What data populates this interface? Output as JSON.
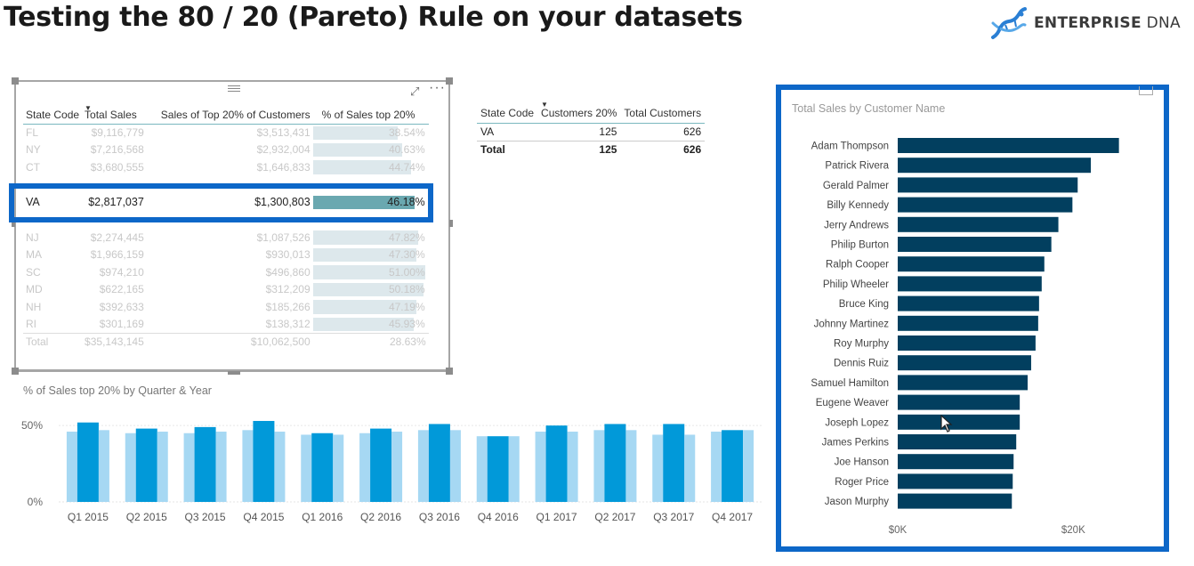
{
  "header": {
    "title": "Testing the 80 / 20 (Pareto) Rule on your datasets",
    "logo_text_bold": "ENTERPRISE",
    "logo_text_light": " DNA"
  },
  "state_table": {
    "columns": [
      "State Code",
      "Total Sales",
      "Sales of Top 20% of Customers",
      "% of Sales top 20%"
    ],
    "rows_top": [
      {
        "state": "FL",
        "total": "$9,116,779",
        "top20": "$3,513,431",
        "pct": "38.54%",
        "pct_value": 38.54
      },
      {
        "state": "NY",
        "total": "$7,216,568",
        "top20": "$2,932,004",
        "pct": "40.63%",
        "pct_value": 40.63
      },
      {
        "state": "CT",
        "total": "$3,680,555",
        "top20": "$1,646,833",
        "pct": "44.74%",
        "pct_value": 44.74
      }
    ],
    "selected_row": {
      "state": "VA",
      "total": "$2,817,037",
      "top20": "$1,300,803",
      "pct": "46.18%",
      "pct_value": 46.18
    },
    "rows_bottom": [
      {
        "state": "NJ",
        "total": "$2,274,445",
        "top20": "$1,087,526",
        "pct": "47.82%",
        "pct_value": 47.82
      },
      {
        "state": "MA",
        "total": "$1,966,159",
        "top20": "$930,013",
        "pct": "47.30%",
        "pct_value": 47.3
      },
      {
        "state": "SC",
        "total": "$974,210",
        "top20": "$496,860",
        "pct": "51.00%",
        "pct_value": 51.0
      },
      {
        "state": "MD",
        "total": "$622,165",
        "top20": "$312,209",
        "pct": "50.18%",
        "pct_value": 50.18
      },
      {
        "state": "NH",
        "total": "$392,633",
        "top20": "$185,266",
        "pct": "47.19%",
        "pct_value": 47.19
      },
      {
        "state": "RI",
        "total": "$301,169",
        "top20": "$138,312",
        "pct": "45.93%",
        "pct_value": 45.93
      }
    ],
    "total": {
      "label": "Total",
      "total": "$35,143,145",
      "top20": "$10,062,500",
      "pct": "28.63%"
    }
  },
  "customer_table": {
    "columns": [
      "State Code",
      "Customers 20%",
      "Total Customers"
    ],
    "row": {
      "state": "VA",
      "customers20": "125",
      "total": "626"
    },
    "total": {
      "label": "Total",
      "customers20": "125",
      "total": "626"
    }
  },
  "chart_data": [
    {
      "type": "bar",
      "title": "% of Sales top 20% by Quarter & Year",
      "categories": [
        "Q1 2015",
        "Q2 2015",
        "Q3 2015",
        "Q4 2015",
        "Q1 2016",
        "Q2 2016",
        "Q3 2016",
        "Q4 2016",
        "Q1 2017",
        "Q2 2017",
        "Q3 2017",
        "Q4 2017"
      ],
      "series": [
        {
          "values": [
            46,
            45,
            45,
            47,
            44,
            45,
            47,
            43,
            46,
            47,
            44,
            46
          ]
        },
        {
          "values": [
            52,
            48,
            49,
            53,
            45,
            48,
            51,
            43,
            50,
            51,
            51,
            47
          ]
        },
        {
          "values": [
            47,
            46,
            46,
            46,
            44,
            46,
            47,
            43,
            46,
            47,
            44,
            47
          ]
        }
      ],
      "yticks": [
        "50%",
        "0%"
      ],
      "ylim": [
        0,
        60
      ],
      "colors": {
        "light": "#a6d8f3",
        "dark": "#0199d9"
      }
    },
    {
      "type": "bar",
      "orientation": "horizontal",
      "title": "Total Sales by Customer Name",
      "categories": [
        "Adam Thompson",
        "Patrick Rivera",
        "Gerald Palmer",
        "Billy Kennedy",
        "Jerry Andrews",
        "Philip Burton",
        "Ralph Cooper",
        "Philip Wheeler",
        "Bruce King",
        "Johnny Martinez",
        "Roy Murphy",
        "Dennis Ruiz",
        "Samuel Hamilton",
        "Eugene Weaver",
        "Joseph Lopez",
        "James Perkins",
        "Joe Hanson",
        "Roger Price",
        "Jason Murphy"
      ],
      "values": [
        25200,
        22000,
        20500,
        19900,
        18300,
        17500,
        16700,
        16400,
        16100,
        16000,
        15700,
        15200,
        14800,
        13900,
        13900,
        13500,
        13200,
        13100,
        13000
      ],
      "xticks": [
        "$0K",
        "$20K"
      ],
      "xlim": [
        0,
        30000
      ],
      "colors": {
        "bar": "#023f5f"
      }
    }
  ]
}
